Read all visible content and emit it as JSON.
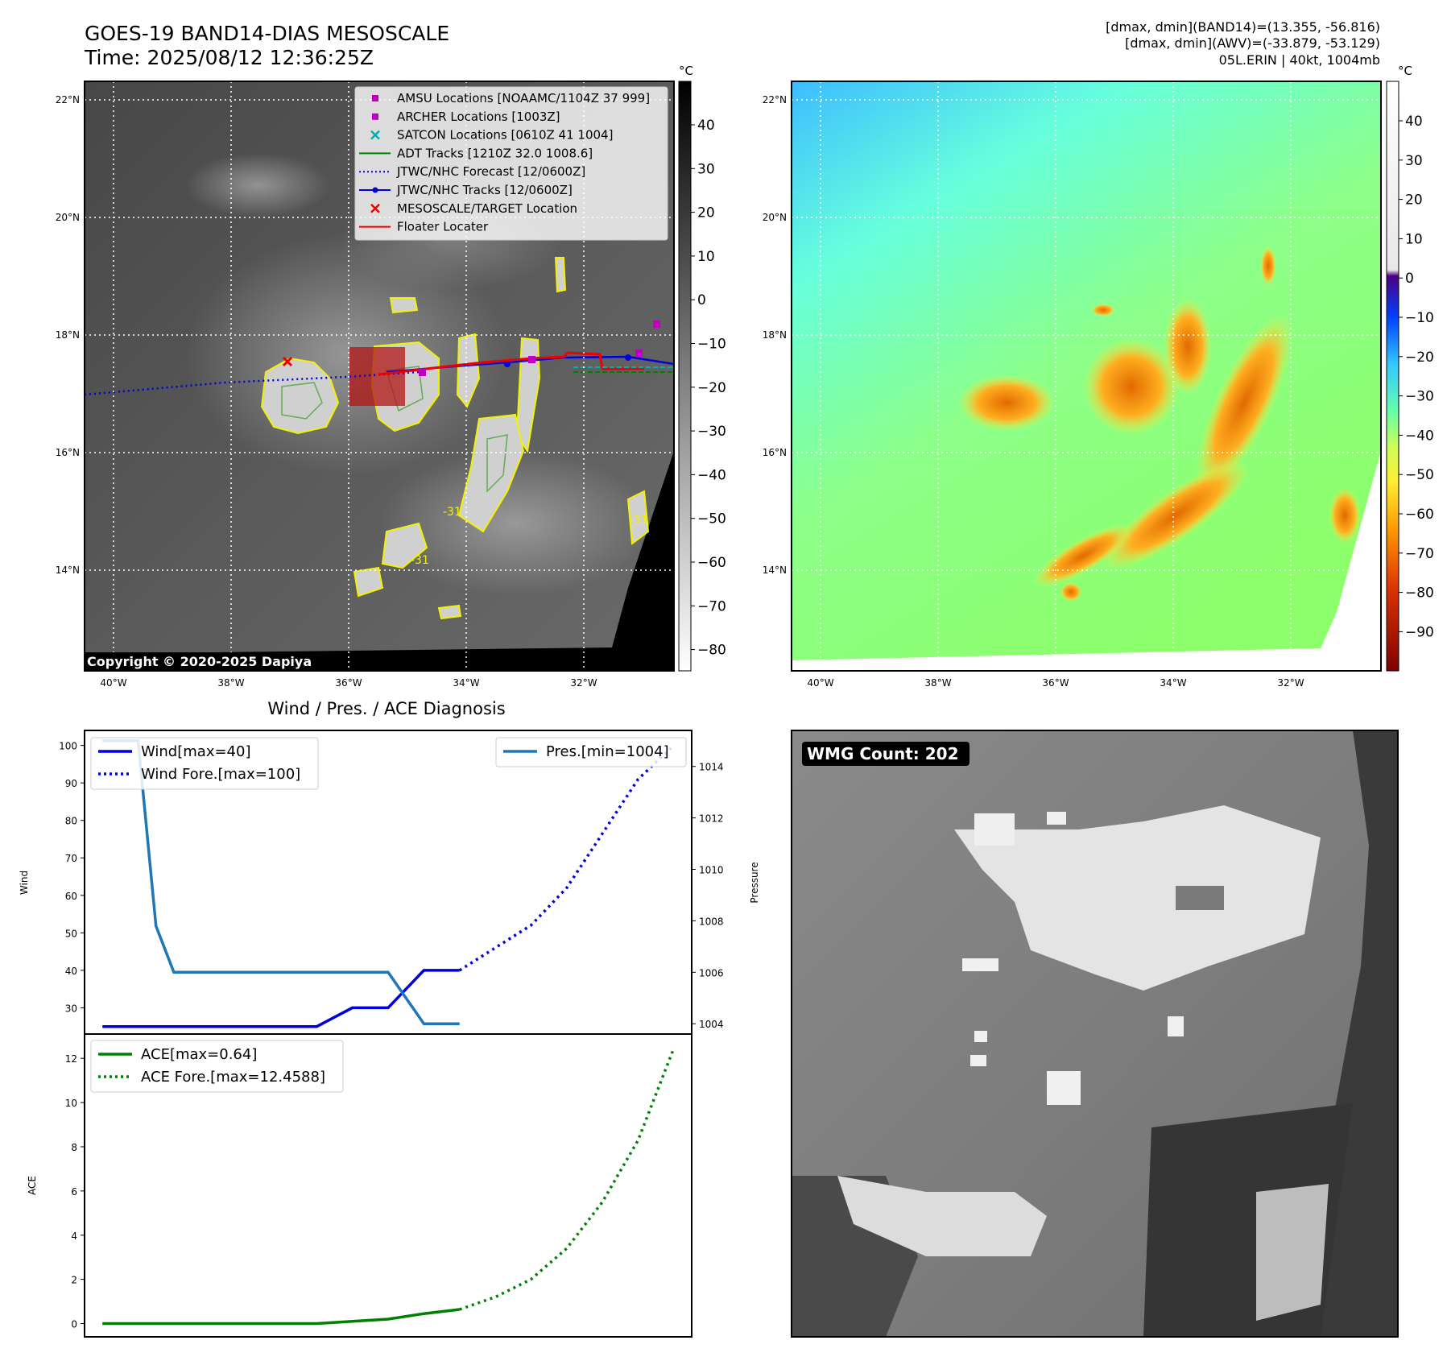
{
  "header": {
    "title_line1": "GOES-19 BAND14-DIAS MESOSCALE",
    "title_line2": "Time: 2025/08/12 12:36:25Z",
    "info_line1": "[dmax, dmin](BAND14)=(13.355, -56.816)",
    "info_line2": "[dmax, dmin](AWV)=(-33.879, -53.129)",
    "info_line3": "05L.ERIN | 40kt, 1004mb"
  },
  "map_panel_left": {
    "lat_labels": [
      "22°N",
      "20°N",
      "18°N",
      "16°N",
      "14°N"
    ],
    "lon_labels": [
      "40°W",
      "38°W",
      "36°W",
      "34°W",
      "32°W"
    ],
    "copyright": "Copyright © 2020-2025 Dapiya",
    "contour_label": "-31",
    "colorbar": {
      "unit": "°C",
      "ticks": [
        "40",
        "30",
        "20",
        "10",
        "0",
        "−10",
        "−20",
        "−30",
        "−40",
        "−50",
        "−60",
        "−70",
        "−80"
      ]
    },
    "legend": [
      {
        "label": "AMSU Locations [NOAAMC/1104Z 37 999]",
        "kind": "square",
        "color": "#c000c0"
      },
      {
        "label": "ARCHER Locations [1003Z]",
        "kind": "square",
        "color": "#c000c0"
      },
      {
        "label": "SATCON Locations [0610Z 41 1004]",
        "kind": "x",
        "color": "#00b0b0"
      },
      {
        "label": "ADT Tracks [1210Z 32.0 1008.6]",
        "kind": "line",
        "color": "#008000"
      },
      {
        "label": "JTWC/NHC Forecast [12/0600Z]",
        "kind": "dotted",
        "color": "#0000dd"
      },
      {
        "label": "JTWC/NHC Tracks [12/0600Z]",
        "kind": "line-dot",
        "color": "#0000dd"
      },
      {
        "label": "MESOSCALE/TARGET Location",
        "kind": "x",
        "color": "#ee0000"
      },
      {
        "label": "Floater Locater",
        "kind": "line",
        "color": "#ee0000"
      }
    ]
  },
  "map_panel_right": {
    "lat_labels": [
      "22°N",
      "20°N",
      "18°N",
      "16°N",
      "14°N"
    ],
    "lon_labels": [
      "40°W",
      "38°W",
      "36°W",
      "34°W",
      "32°W"
    ],
    "colorbar": {
      "unit": "°C",
      "ticks": [
        "40",
        "30",
        "20",
        "10",
        "0",
        "−10",
        "−20",
        "−30",
        "−40",
        "−50",
        "−60",
        "−70",
        "−80",
        "−90"
      ]
    }
  },
  "wmg_panel": {
    "badge": "WMG Count: 202"
  },
  "chart_data": [
    {
      "type": "line",
      "title": "Wind / Pres. / ACE Diagnosis",
      "ylabel": "Wind",
      "ylabel_right": "Pressure",
      "ylim": [
        23,
        104
      ],
      "ylim_right": [
        1003.6,
        1015.4
      ],
      "yticks": [
        30,
        40,
        50,
        60,
        70,
        80,
        90,
        100
      ],
      "yticks_right": [
        1004,
        1006,
        1008,
        1010,
        1012,
        1014
      ],
      "xlim": [
        -0.5,
        16.5
      ],
      "series": [
        {
          "name": "Wind[max=40]",
          "style": "solid",
          "color": "#0000dd",
          "axis": "left",
          "x": [
            0,
            1,
            2,
            3,
            4,
            5,
            6,
            7,
            8,
            9,
            10
          ],
          "values": [
            25,
            25,
            25,
            25,
            25,
            25,
            25,
            30,
            30,
            40,
            40
          ]
        },
        {
          "name": "Wind Fore.[max=100]",
          "style": "dotted",
          "color": "#0000dd",
          "axis": "left",
          "x": [
            10,
            12,
            13,
            15,
            16
          ],
          "values": [
            40,
            52,
            62,
            91,
            100
          ]
        },
        {
          "name": "Pres.[min=1004]",
          "style": "solid",
          "color": "#1f77b4",
          "axis": "right",
          "x": [
            0,
            0.5,
            1,
            1.5,
            2,
            3,
            4,
            5,
            6,
            7,
            8,
            9,
            10
          ],
          "values": [
            1015,
            1015,
            1015,
            1007.8,
            1006,
            1006,
            1006,
            1006,
            1006,
            1006,
            1006,
            1004,
            1004
          ]
        }
      ]
    },
    {
      "type": "line",
      "ylabel": "ACE",
      "ylim": [
        -0.6,
        13.1
      ],
      "yticks": [
        0,
        2,
        4,
        6,
        8,
        10,
        12
      ],
      "xlim": [
        -0.5,
        16.5
      ],
      "series": [
        {
          "name": "ACE[max=0.64]",
          "style": "solid",
          "color": "#008000",
          "x": [
            0,
            1,
            2,
            3,
            4,
            5,
            6,
            7,
            8,
            9,
            10
          ],
          "values": [
            0,
            0,
            0,
            0,
            0,
            0,
            0,
            0.1,
            0.2,
            0.45,
            0.64
          ]
        },
        {
          "name": "ACE Fore.[max=12.4588]",
          "style": "dotted",
          "color": "#008000",
          "x": [
            10,
            11,
            12,
            13,
            14,
            15,
            16
          ],
          "values": [
            0.64,
            1.2,
            2.0,
            3.4,
            5.5,
            8.3,
            12.4588
          ]
        }
      ]
    }
  ]
}
